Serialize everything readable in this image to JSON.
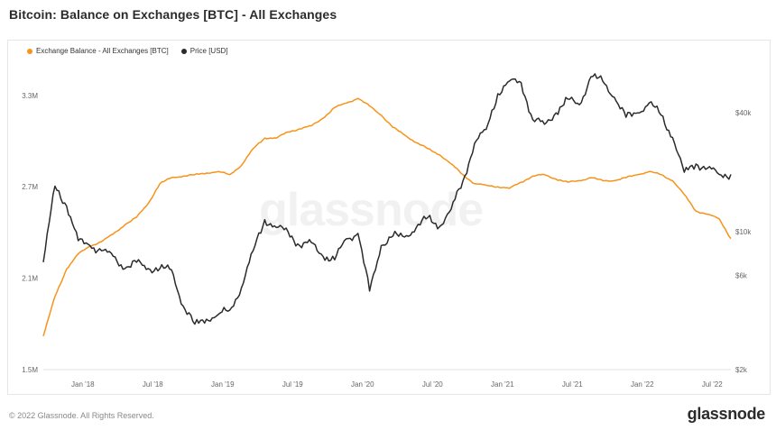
{
  "title": "Bitcoin: Balance on Exchanges [BTC] - All Exchanges",
  "footer": {
    "copyright": "© 2022 Glassnode. All Rights Reserved.",
    "logo": "glassnode"
  },
  "watermark": "glassnode",
  "chart_data": {
    "type": "line",
    "legend_placement": "top-left",
    "grid": false,
    "x_ticks": [
      "Jan '18",
      "Jul '18",
      "Jan '19",
      "Jul '19",
      "Jan '20",
      "Jul '20",
      "Jan '21",
      "Jul '21",
      "Jan '22",
      "Jul '22"
    ],
    "x_range": [
      "2017-11",
      "2022-10"
    ],
    "y_left": {
      "ticks": [
        "1.5M",
        "2.1M",
        "2.7M",
        "3.3M"
      ],
      "range": [
        1.5,
        3.5
      ],
      "unit": "M BTC"
    },
    "y_right": {
      "scale": "log",
      "ticks": [
        "$2k",
        "$6k",
        "$10k",
        "$40k"
      ],
      "range": [
        2000,
        70000
      ]
    },
    "series": [
      {
        "name": "Exchange Balance - All Exchanges [BTC]",
        "axis": "left",
        "color": "#f7931a",
        "x": [
          "2017-11",
          "2017-12",
          "2018-01",
          "2018-02",
          "2018-03",
          "2018-04",
          "2018-05",
          "2018-06",
          "2018-07",
          "2018-08",
          "2018-09",
          "2018-10",
          "2018-11",
          "2018-12",
          "2019-01",
          "2019-02",
          "2019-03",
          "2019-04",
          "2019-05",
          "2019-06",
          "2019-07",
          "2019-08",
          "2019-09",
          "2019-10",
          "2019-11",
          "2019-12",
          "2020-01",
          "2020-02",
          "2020-03",
          "2020-04",
          "2020-05",
          "2020-06",
          "2020-07",
          "2020-08",
          "2020-09",
          "2020-10",
          "2020-11",
          "2020-12",
          "2021-01",
          "2021-02",
          "2021-03",
          "2021-04",
          "2021-05",
          "2021-06",
          "2021-07",
          "2021-08",
          "2021-09",
          "2021-10",
          "2021-11",
          "2021-12",
          "2022-01",
          "2022-02",
          "2022-03",
          "2022-04",
          "2022-05",
          "2022-06",
          "2022-07",
          "2022-08",
          "2022-09",
          "2022-10"
        ],
        "y": [
          1.72,
          1.98,
          2.16,
          2.26,
          2.31,
          2.34,
          2.39,
          2.45,
          2.5,
          2.59,
          2.72,
          2.76,
          2.77,
          2.78,
          2.79,
          2.8,
          2.78,
          2.84,
          2.95,
          3.02,
          3.02,
          3.06,
          3.08,
          3.1,
          3.15,
          3.22,
          3.25,
          3.28,
          3.23,
          3.17,
          3.09,
          3.04,
          2.99,
          2.95,
          2.91,
          2.85,
          2.78,
          2.72,
          2.71,
          2.7,
          2.69,
          2.73,
          2.77,
          2.78,
          2.75,
          2.73,
          2.74,
          2.76,
          2.74,
          2.74,
          2.76,
          2.78,
          2.8,
          2.78,
          2.74,
          2.65,
          2.54,
          2.52,
          2.49,
          2.36
        ]
      },
      {
        "name": "Price [USD]",
        "axis": "right",
        "color": "#2b2b2b",
        "x": [
          "2017-11",
          "2017-12",
          "2018-01",
          "2018-02",
          "2018-03",
          "2018-04",
          "2018-05",
          "2018-06",
          "2018-07",
          "2018-08",
          "2018-09",
          "2018-10",
          "2018-11",
          "2018-12",
          "2019-01",
          "2019-02",
          "2019-03",
          "2019-04",
          "2019-05",
          "2019-06",
          "2019-07",
          "2019-08",
          "2019-09",
          "2019-10",
          "2019-11",
          "2019-12",
          "2020-01",
          "2020-02",
          "2020-03",
          "2020-04",
          "2020-05",
          "2020-06",
          "2020-07",
          "2020-08",
          "2020-09",
          "2020-10",
          "2020-11",
          "2020-12",
          "2021-01",
          "2021-02",
          "2021-03",
          "2021-04",
          "2021-05",
          "2021-06",
          "2021-07",
          "2021-08",
          "2021-09",
          "2021-10",
          "2021-11",
          "2021-12",
          "2022-01",
          "2022-02",
          "2022-03",
          "2022-04",
          "2022-05",
          "2022-06",
          "2022-07",
          "2022-08",
          "2022-09",
          "2022-10"
        ],
        "y": [
          7000,
          17000,
          13500,
          9000,
          8500,
          8000,
          7500,
          6500,
          7000,
          6500,
          6500,
          6400,
          4200,
          3400,
          3600,
          3800,
          4000,
          5200,
          8000,
          11500,
          10500,
          10000,
          8500,
          8800,
          7500,
          7200,
          9200,
          9800,
          5000,
          8500,
          9500,
          9400,
          10500,
          11800,
          10600,
          13000,
          18000,
          28000,
          33000,
          50000,
          58000,
          57000,
          37000,
          35000,
          40000,
          47000,
          44000,
          61000,
          58000,
          48000,
          38000,
          40000,
          45000,
          39000,
          30000,
          20000,
          22000,
          21000,
          19500,
          19500
        ]
      }
    ]
  }
}
